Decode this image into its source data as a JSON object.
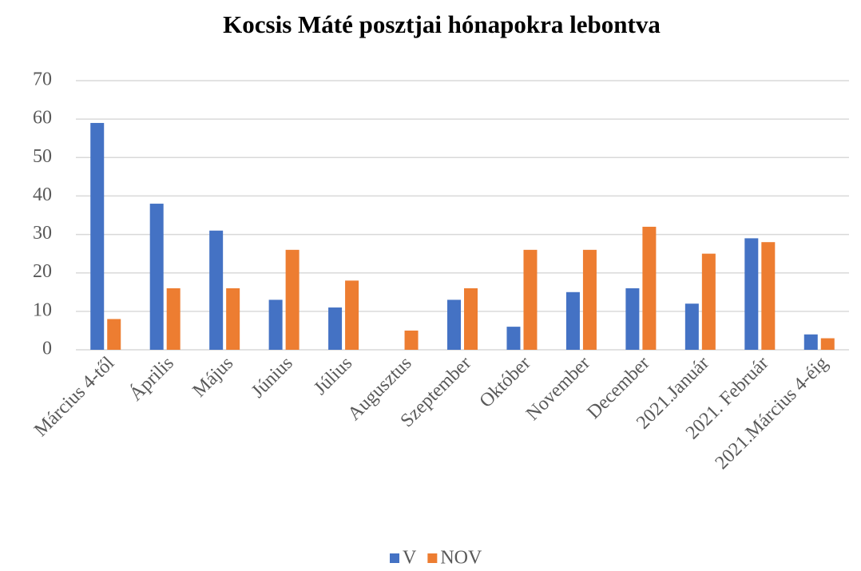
{
  "chart_data": {
    "type": "bar",
    "title": "Kocsis Máté posztjai hónapokra lebontva",
    "categories": [
      "Március 4-től",
      "Április",
      "Május",
      "Június",
      "Július",
      "Augusztus",
      "Szeptember",
      "Október",
      "November",
      "December",
      "2021.Január",
      "2021. Február",
      "2021.Március 4-éig"
    ],
    "series": [
      {
        "name": "V",
        "color": "#4472c4",
        "values": [
          59,
          38,
          31,
          13,
          11,
          0,
          13,
          6,
          15,
          16,
          12,
          29,
          4
        ]
      },
      {
        "name": "NOV",
        "color": "#ed7d31",
        "values": [
          8,
          16,
          16,
          26,
          18,
          5,
          16,
          26,
          26,
          32,
          25,
          28,
          3
        ]
      }
    ],
    "ylim": [
      0,
      70
    ],
    "yticks": [
      0,
      10,
      20,
      30,
      40,
      50,
      60,
      70
    ],
    "grid": true,
    "legend": "bottom"
  }
}
